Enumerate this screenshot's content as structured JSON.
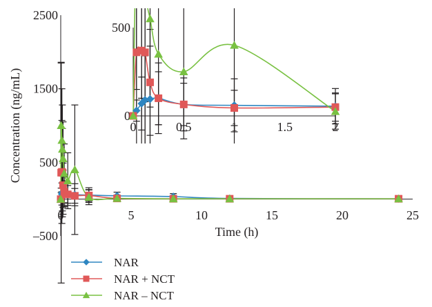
{
  "chart_data": [
    {
      "id": "main",
      "type": "line",
      "xlabel": "Time (h)",
      "ylabel": "Concentration (ng/mL)",
      "xlim": [
        0,
        25
      ],
      "ylim": [
        -500,
        2500
      ],
      "x_ticks": [
        0,
        5,
        10,
        15,
        20,
        25
      ],
      "y_ticks": [
        -500,
        500,
        1500,
        2500
      ],
      "y_tick_labels": [
        "–500",
        "500",
        "1500",
        "2500"
      ],
      "grid": false,
      "legend_position": "bottom-left",
      "series": [
        {
          "name": "NAR",
          "color": "#2e86c1",
          "marker": "diamond",
          "x": [
            0,
            0.033,
            0.083,
            0.117,
            0.167,
            0.25,
            0.5,
            1,
            2,
            4,
            8,
            12,
            24
          ],
          "y": [
            0,
            30,
            70,
            90,
            95,
            100,
            65,
            60,
            55,
            45,
            35,
            10,
            5
          ],
          "err": [
            0,
            60,
            150,
            250,
            300,
            150,
            150,
            150,
            100,
            50,
            40,
            30,
            20
          ]
        },
        {
          "name": "NAR + NCT",
          "color": "#e05858",
          "marker": "square",
          "x": [
            0,
            0.033,
            0.083,
            0.117,
            0.167,
            0.25,
            0.5,
            1,
            2,
            4,
            8,
            12,
            24
          ],
          "y": [
            0,
            360,
            370,
            360,
            190,
            100,
            65,
            45,
            50,
            10,
            5,
            5,
            5
          ],
          "err": [
            0,
            1500,
            700,
            600,
            300,
            200,
            120,
            100,
            80,
            30,
            20,
            15,
            10
          ]
        },
        {
          "name": "NAR – NCT",
          "color": "#79c142",
          "marker": "triangle",
          "x": [
            0,
            0.033,
            0.083,
            0.117,
            0.167,
            0.25,
            0.5,
            1,
            2,
            4,
            8,
            12,
            24
          ],
          "y": [
            0,
            1000,
            800,
            680,
            550,
            350,
            250,
            400,
            25,
            10,
            5,
            5,
            5
          ],
          "err": [
            0,
            850,
            700,
            600,
            500,
            400,
            380,
            880,
            100,
            30,
            20,
            10,
            10
          ]
        }
      ]
    },
    {
      "id": "inset",
      "type": "line",
      "xlim": [
        0,
        2
      ],
      "ylim": [
        0,
        500
      ],
      "x_ticks": [
        0,
        0.5,
        1,
        1.5,
        2
      ],
      "y_ticks": [
        0,
        500
      ],
      "series_ref": "main",
      "grid": false
    }
  ]
}
